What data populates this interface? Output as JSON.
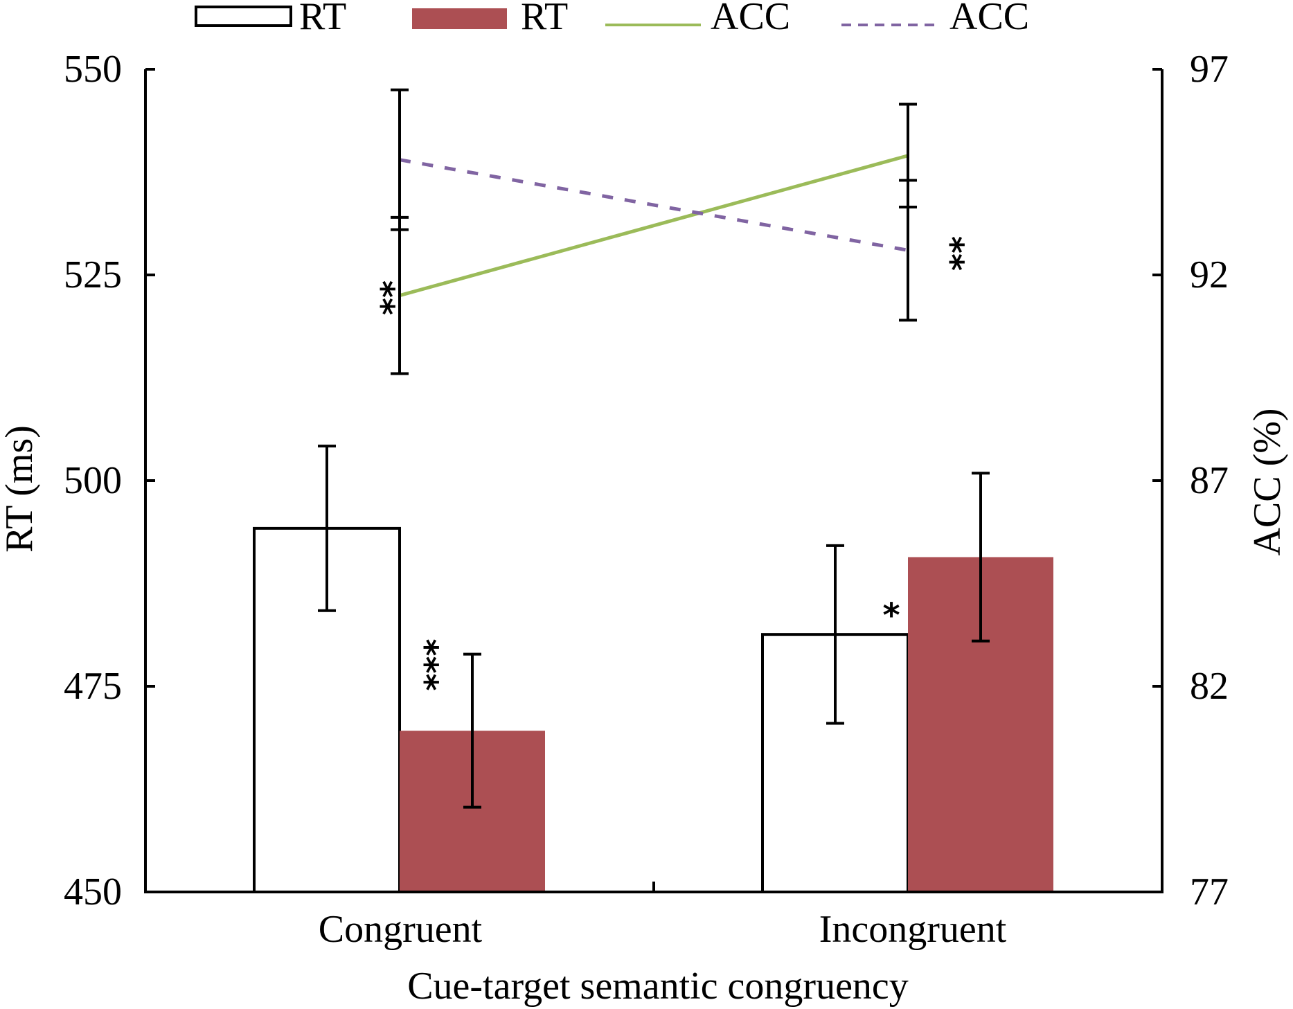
{
  "chart_data": {
    "type": "bar",
    "title": "",
    "xlabel": "Cue-target semantic congruency",
    "ylabel": "RT (ms)",
    "y2label": "ACC (%)",
    "categories": [
      "Congruent",
      "Incongruent"
    ],
    "ylim": [
      450,
      550
    ],
    "yticks": [
      450,
      475,
      500,
      525,
      550
    ],
    "y2lim": [
      77,
      97
    ],
    "y2ticks": [
      77,
      82,
      87,
      92,
      97
    ],
    "grid": false,
    "legend_position": "top",
    "series": [
      {
        "name": "RT",
        "kind": "bar",
        "axis": "left",
        "style": "outline",
        "color": "#ffffff",
        "edge_color": "#000000",
        "values": [
          494.2,
          481.3
        ],
        "errors": [
          10.0,
          10.8
        ]
      },
      {
        "name": "RT",
        "kind": "bar",
        "axis": "left",
        "style": "filled",
        "color": "#ac4f53",
        "values": [
          469.6,
          490.7
        ],
        "errors": [
          9.3,
          10.2
        ]
      },
      {
        "name": "ACC",
        "kind": "line",
        "axis": "right",
        "style": "solid",
        "color": "#9bbb59",
        "values": [
          91.5,
          94.9
        ],
        "errors": [
          1.9,
          1.25
        ]
      },
      {
        "name": "ACC",
        "kind": "line",
        "axis": "right",
        "style": "dashed",
        "color": "#8064a2",
        "values": [
          94.8,
          92.6
        ],
        "errors": [
          1.7,
          1.7
        ]
      }
    ],
    "annotations": [
      {
        "text": "**",
        "near": "ACC solid line, Congruent"
      },
      {
        "text": "***",
        "near": "RT filled bar, Congruent"
      },
      {
        "text": "*",
        "near": "RT bars, Incongruent"
      },
      {
        "text": "**",
        "near": "ACC dashed line, Incongruent"
      }
    ]
  }
}
